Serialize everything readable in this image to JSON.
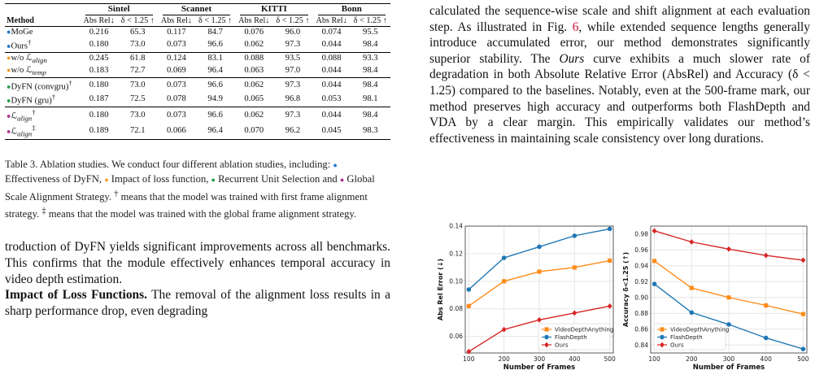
{
  "table": {
    "groups": [
      "Sintel",
      "Scannet",
      "KITTI",
      "Bonn"
    ],
    "method_header": "Method",
    "metric_headers": [
      "Abs Rel↓",
      "δ < 1.25 ↑"
    ],
    "sections": [
      {
        "color": "#1f77d0",
        "rows": [
          {
            "method": "MoGe",
            "sup": "",
            "values": [
              "0.216",
              "65.3",
              "0.117",
              "84.7",
              "0.076",
              "96.0",
              "0.074",
              "95.5"
            ]
          },
          {
            "method": "Ours",
            "sup": "†",
            "values": [
              "0.180",
              "73.0",
              "0.073",
              "96.6",
              "0.062",
              "97.3",
              "0.044",
              "98.4"
            ]
          }
        ]
      },
      {
        "color": "#f0a030",
        "rows": [
          {
            "method": "w/o ℒ",
            "sub": "align",
            "sup": "",
            "values": [
              "0.245",
              "61.8",
              "0.124",
              "83.1",
              "0.088",
              "93.5",
              "0.088",
              "93.3"
            ]
          },
          {
            "method": "w/o ℒ",
            "sub": "temp",
            "sup": "",
            "values": [
              "0.183",
              "72.7",
              "0.069",
              "96.4",
              "0.063",
              "97.0",
              "0.044",
              "98.4"
            ]
          }
        ]
      },
      {
        "color": "#2a9d4a",
        "rows": [
          {
            "method": "DyFN (convgru)",
            "sup": "†",
            "values": [
              "0.180",
              "73.0",
              "0.073",
              "96.6",
              "0.062",
              "97.3",
              "0.044",
              "98.4"
            ]
          },
          {
            "method": "DyFN (gru)",
            "sup": "†",
            "values": [
              "0.187",
              "72.5",
              "0.078",
              "94.9",
              "0.065",
              "96.8",
              "0.053",
              "98.1"
            ]
          }
        ]
      },
      {
        "color": "#b03090",
        "rows": [
          {
            "method": "ℒ",
            "sub": "align",
            "sup": "†",
            "values": [
              "0.180",
              "73.0",
              "0.073",
              "96.6",
              "0.062",
              "97.3",
              "0.044",
              "98.4"
            ]
          },
          {
            "method": "ℒ",
            "sub": "align",
            "sup": "‡",
            "values": [
              "0.189",
              "72.1",
              "0.066",
              "96.4",
              "0.070",
              "96.2",
              "0.045",
              "98.3"
            ]
          }
        ]
      }
    ]
  },
  "caption": {
    "p1": "Table 3. Ablation studies. We conduct four different ablation studies, including: ",
    "i1": "Effectiveness of DyFN, ",
    "i2": "Impact of loss function, ",
    "i3": "Recurrent Unit Selection and ",
    "i4": "Global Scale Alignment Strategy. ",
    "d1": "means that the model was trained with first frame alignment strategy. ",
    "d2": "means that the model was trained with the global frame alignment strategy."
  },
  "left_body": {
    "p1": "troduction of DyFN yields significant improvements across all benchmarks. This confirms that the module effectively enhances temporal accuracy in video depth estimation.",
    "heading": "Impact of Loss Functions.",
    "p2": " The removal of the alignment loss results in a sharp performance drop, even degrading"
  },
  "right_body": {
    "t1": "calculated the sequence-wise scale and shift alignment at each evaluation step. As illustrated in Fig. ",
    "figref": "6",
    "t2": ", while extended sequence lengths generally introduce accumulated error, our method demonstrates significantly superior stability. The ",
    "ours": "Ours",
    "t3": " curve exhibits a much slower rate of degradation in both Absolute Relative Error (AbsRel) and Accuracy (δ < 1.25) compared to the baselines. Notably, even at the 500-frame mark, our method preserves high accuracy and outperforms both FlashDepth and VDA by a clear margin. This empirically validates our method’s effectiveness in maintaining scale consistency over long durations."
  },
  "chart_data": [
    {
      "type": "line",
      "xlabel": "Number of Frames",
      "ylabel": "Abs Rel Error (↓)",
      "x": [
        100,
        200,
        300,
        400,
        500
      ],
      "ylim": [
        0.048,
        0.14
      ],
      "yticks": [
        0.06,
        0.08,
        0.1,
        0.12,
        0.14
      ],
      "legend": "bottom-right",
      "series": [
        {
          "name": "VideoDepthAnything",
          "color": "#ff8c1a",
          "marker": "square",
          "values": [
            0.082,
            0.1,
            0.107,
            0.11,
            0.115
          ]
        },
        {
          "name": "FlashDepth",
          "color": "#1f77b4",
          "marker": "circle",
          "values": [
            0.094,
            0.117,
            0.125,
            0.133,
            0.138
          ]
        },
        {
          "name": "Ours",
          "color": "#d62728",
          "marker": "diamond",
          "values": [
            0.049,
            0.065,
            0.072,
            0.077,
            0.082
          ]
        }
      ]
    },
    {
      "type": "line",
      "xlabel": "Number of Frames",
      "ylabel": "Accuracy δ<1.25 (↑)",
      "x": [
        100,
        200,
        300,
        400,
        500
      ],
      "ylim": [
        0.83,
        0.99
      ],
      "yticks": [
        0.84,
        0.86,
        0.88,
        0.9,
        0.92,
        0.94,
        0.96,
        0.98
      ],
      "legend": "bottom-left",
      "series": [
        {
          "name": "VideoDepthAnything",
          "color": "#ff8c1a",
          "marker": "square",
          "values": [
            0.946,
            0.912,
            0.9,
            0.89,
            0.879
          ]
        },
        {
          "name": "FlashDepth",
          "color": "#1f77b4",
          "marker": "circle",
          "values": [
            0.917,
            0.881,
            0.866,
            0.849,
            0.835
          ]
        },
        {
          "name": "Ours",
          "color": "#d62728",
          "marker": "diamond",
          "values": [
            0.984,
            0.97,
            0.961,
            0.953,
            0.947
          ]
        }
      ]
    }
  ]
}
